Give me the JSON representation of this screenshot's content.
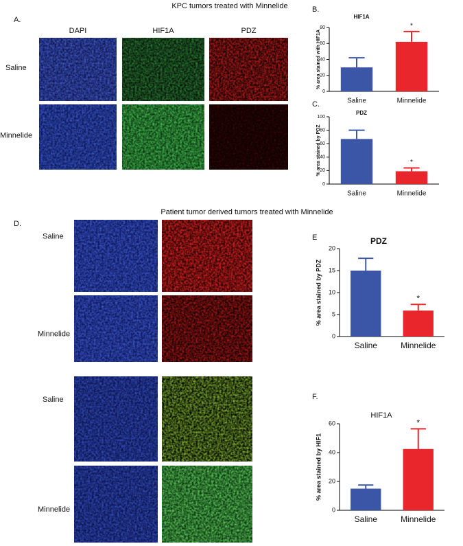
{
  "sections": [
    {
      "title": "KPC tumors treated with Minnelide"
    },
    {
      "title": "Patient tumor derived tumors treated with Minnelide"
    }
  ],
  "panel_a": {
    "label": "A.",
    "columns": [
      "DAPI",
      "HIF1A",
      "PDZ"
    ],
    "rows": [
      "Saline",
      "Minnelide"
    ]
  },
  "panel_d": {
    "label": "D.",
    "rows": [
      "Saline",
      "Minnelide",
      "Saline",
      "Minnelide"
    ]
  },
  "chart_data": [
    {
      "type": "bar",
      "panel": "B.",
      "title": "HIF1A",
      "y_label": "% area stained with HIF1A",
      "categories": [
        "Saline",
        "Minnelide"
      ],
      "values": [
        30,
        62
      ],
      "errors": [
        12,
        13
      ],
      "colors": [
        "#3b56a6",
        "#e8262b"
      ],
      "significance": [
        null,
        "*"
      ],
      "ylim": [
        0,
        80
      ],
      "yticks": [
        0,
        20,
        40,
        60,
        80
      ]
    },
    {
      "type": "bar",
      "panel": "C.",
      "title": "PDZ",
      "y_label": "% area stained by PDZ",
      "categories": [
        "Saline",
        "Minnelide"
      ],
      "values": [
        67,
        19
      ],
      "errors": [
        13,
        5
      ],
      "colors": [
        "#3b56a6",
        "#e8262b"
      ],
      "significance": [
        null,
        "*"
      ],
      "ylim": [
        0,
        100
      ],
      "yticks": [
        0,
        20,
        40,
        60,
        80,
        100
      ]
    },
    {
      "type": "bar",
      "panel": "E",
      "title": "PDZ",
      "y_label": "% area stained by PDZ",
      "categories": [
        "Saline",
        "Minnelide"
      ],
      "values": [
        15,
        5.9
      ],
      "errors": [
        2.8,
        1.4
      ],
      "colors": [
        "#3b56a6",
        "#e8262b"
      ],
      "significance": [
        null,
        "*"
      ],
      "ylim": [
        0,
        20
      ],
      "yticks": [
        0,
        5,
        10,
        15,
        20
      ]
    },
    {
      "type": "bar",
      "panel": "F.",
      "title": "HIF1A",
      "y_label": "% area stained by HIF1",
      "categories": [
        "Saline",
        "Minnelide"
      ],
      "values": [
        15,
        42.5
      ],
      "errors": [
        2.5,
        14
      ],
      "colors": [
        "#3b56a6",
        "#e8262b"
      ],
      "significance": [
        null,
        "*"
      ],
      "ylim": [
        0,
        60
      ],
      "yticks": [
        0,
        20,
        40,
        60
      ]
    }
  ]
}
